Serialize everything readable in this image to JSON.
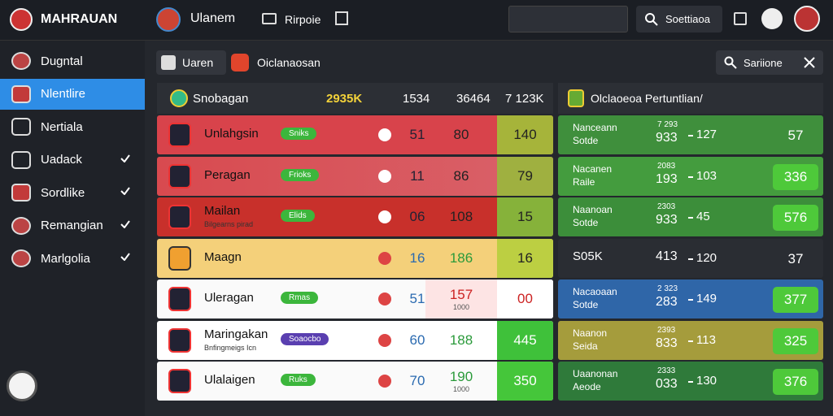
{
  "header": {
    "brand": "MAHRAUAN",
    "team": "Ulanem",
    "nav": "Rirpoie",
    "search": "Soettiaoa"
  },
  "sidebar": {
    "items": [
      "Dugntal",
      "Nlentlire",
      "Nertiala",
      "Uadack",
      "Sordlike",
      "Remangian",
      "Marlgolia"
    ]
  },
  "tabs": [
    "Uaren",
    "Oiclanaosan"
  ],
  "search": "Sariione",
  "table": {
    "header": [
      "Snobagan",
      "2935K",
      "1534",
      "36464",
      "7 123K"
    ],
    "rows": [
      {
        "name": "Unlahgsin",
        "badge": "Sniks",
        "a": "51",
        "b": "80",
        "c": "140"
      },
      {
        "name": "Peragan",
        "badge": "Frioks",
        "a": "11",
        "b": "86",
        "c": "79"
      },
      {
        "name": "Mailan",
        "sub": "Bilgearns pirad",
        "badge": "Elids",
        "a": "06",
        "b": "108",
        "c": "15"
      },
      {
        "name": "Maagn",
        "a": "16",
        "b": "186",
        "c": "16"
      },
      {
        "name": "Uleragan",
        "badge": "Rmas",
        "a": "51",
        "b": "157",
        "bsub": "1000",
        "c": "00"
      },
      {
        "name": "Maringakan",
        "sub": "Bnfingmeigs Icn",
        "badge": "Soaocbo",
        "a": "60",
        "b": "188",
        "c": "445"
      },
      {
        "name": "Ulalaigen",
        "badge": "Ruks",
        "a": "70",
        "b": "190",
        "bsub": "1000",
        "c": "350"
      }
    ]
  },
  "panel": {
    "title": "Olclaoeoa Pertuntlian/",
    "rows": [
      {
        "title": "Nanceann",
        "subtitle": "Sotde",
        "top": "7 293",
        "mid": "933",
        "low": "127",
        "score": "57"
      },
      {
        "title": "Nacanen",
        "subtitle": "Raile",
        "top": "2083",
        "mid": "193",
        "low": "103",
        "score": "336"
      },
      {
        "title": "Naanoan",
        "subtitle": "Sotde",
        "top": "2303",
        "mid": "933",
        "low": "45",
        "score": "576"
      },
      {
        "title": "S05K",
        "mid": "413",
        "low": "120",
        "score": "37"
      },
      {
        "title": "Nacaoaan",
        "subtitle": "Sotde",
        "top": "2 323",
        "mid": "283",
        "low": "149",
        "score": "377"
      },
      {
        "title": "Naanon",
        "subtitle": "Seida",
        "top": "2393",
        "mid": "833",
        "low": "113",
        "score": "325"
      },
      {
        "title": "Uaanonan",
        "subtitle": "Aeode",
        "top": "2333",
        "mid": "033",
        "low": "130",
        "score": "376"
      }
    ]
  }
}
